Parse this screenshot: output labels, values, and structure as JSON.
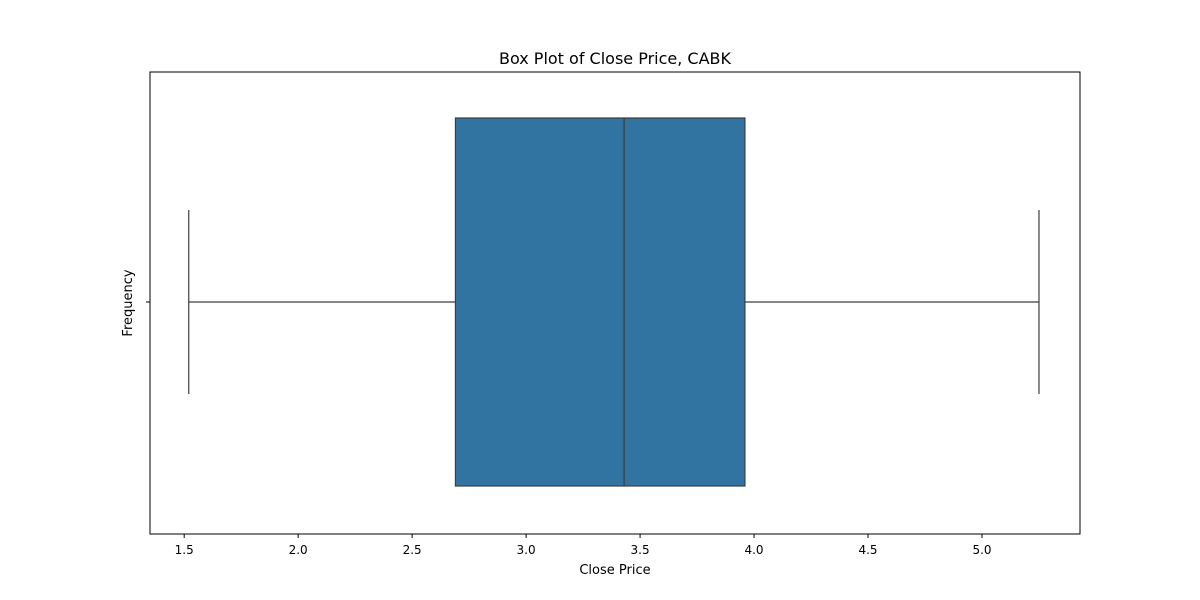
{
  "chart_data": {
    "type": "box",
    "title": "Box Plot of Close Price, CABK",
    "xlabel": "Close Price",
    "ylabel": "Frequency",
    "xlim": [
      1.35,
      5.43
    ],
    "xticks": [
      1.5,
      2.0,
      2.5,
      3.0,
      3.5,
      4.0,
      4.5,
      5.0
    ],
    "xtick_labels": [
      "1.5",
      "2.0",
      "2.5",
      "3.0",
      "3.5",
      "4.0",
      "4.5",
      "5.0"
    ],
    "grid": false,
    "box": {
      "whisker_low": 1.52,
      "q1": 2.69,
      "median": 3.43,
      "q3": 3.96,
      "whisker_high": 5.25
    },
    "colors": {
      "box_fill": "#3274a1",
      "line": "#3d3d3d"
    }
  }
}
